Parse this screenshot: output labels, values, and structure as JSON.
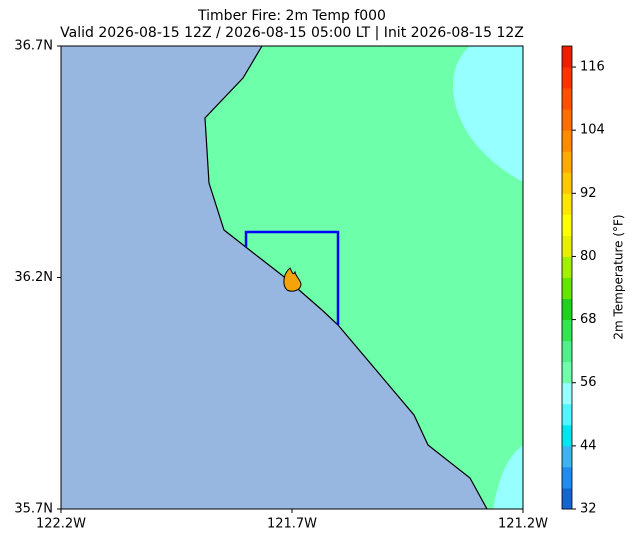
{
  "chart_data": {
    "type": "map",
    "title": "Timber Fire: 2m Temp f000",
    "subtitle": "Valid 2026-08-15 12Z / 2026-08-15 05:00 LT | Init 2026-08-15 12Z",
    "xlim": [
      -122.2,
      -121.2
    ],
    "xticks": [
      {
        "value": -122.2,
        "label": "122.2W"
      },
      {
        "value": -121.7,
        "label": "121.7W"
      },
      {
        "value": -121.2,
        "label": "121.2W"
      }
    ],
    "ylim": [
      35.7,
      36.7
    ],
    "yticks": [
      {
        "value": 35.7,
        "label": "35.7N"
      },
      {
        "value": 36.2,
        "label": "36.2N"
      },
      {
        "value": 36.7,
        "label": "36.7N"
      }
    ],
    "colorbar": {
      "label": "2m Temperature (°F)",
      "lim": [
        32,
        120
      ],
      "ticks": [
        32,
        44,
        56,
        68,
        80,
        92,
        104,
        116
      ],
      "colors": [
        "#1464d2",
        "#1e8cf0",
        "#3cb4f0",
        "#00e6f0",
        "#50f5ff",
        "#96ffff",
        "#6effaa",
        "#50f08c",
        "#32e650",
        "#1ed21e",
        "#64e600",
        "#a0f000",
        "#e6f000",
        "#ffff00",
        "#ffe600",
        "#ffc800",
        "#ffaa00",
        "#ff8c00",
        "#ff6e00",
        "#ff5000",
        "#ff3200",
        "#f01e00"
      ]
    }
  }
}
